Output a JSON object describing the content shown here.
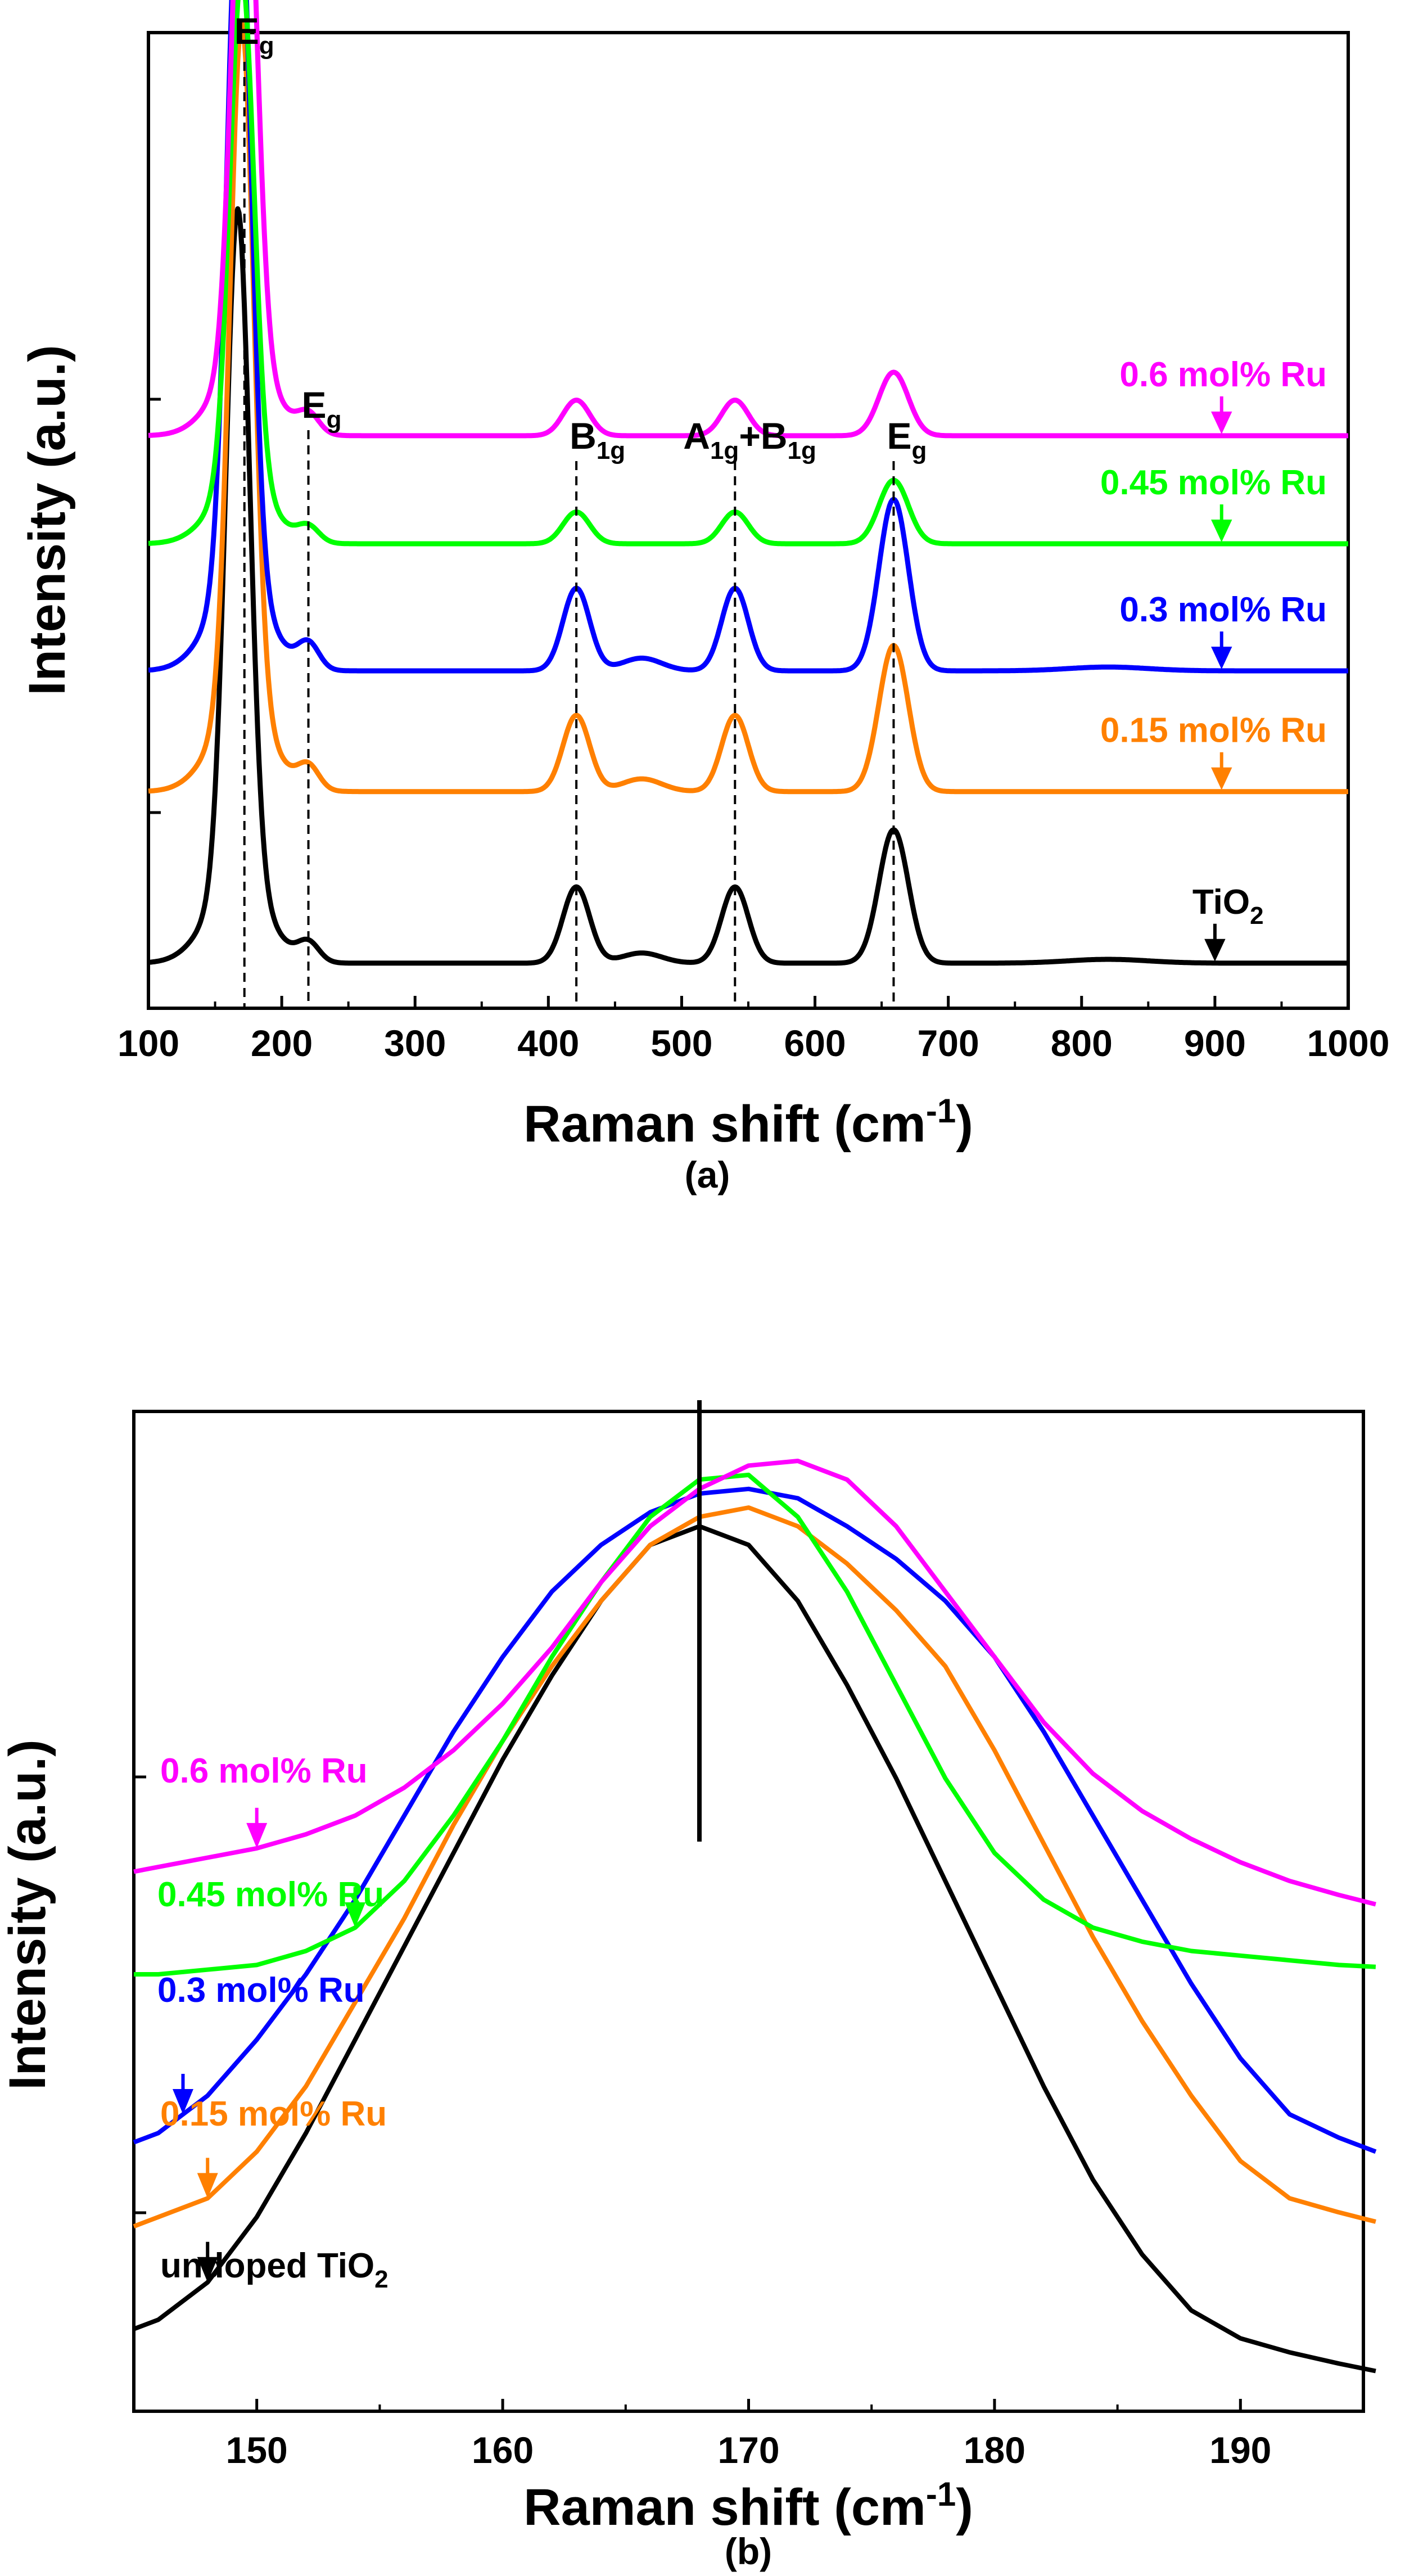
{
  "chart_data": [
    {
      "panel": "(a)",
      "type": "line",
      "xlabel_main": "Raman shift (cm",
      "xlabel_sup": "-1",
      "xlabel_close": ")",
      "ylabel": "Intensity (a.u.)",
      "xlim": [
        100,
        1000
      ],
      "x_ticks": [
        100,
        200,
        300,
        400,
        500,
        600,
        700,
        800,
        900,
        1000
      ],
      "ylim": [
        0,
        10
      ],
      "peaks": [
        {
          "label": "E",
          "sub": "g",
          "x": 172
        },
        {
          "label": "E",
          "sub": "g",
          "x": 220
        },
        {
          "label": "B",
          "sub": "1g",
          "x": 421
        },
        {
          "label": "A",
          "sub": "1g",
          "mid": "+B",
          "sub2": "1g",
          "x": 540
        },
        {
          "label": "E",
          "sub": "g",
          "x": 659
        }
      ],
      "series": [
        {
          "name": "TiO",
          "sub": "2",
          "color": "#000000",
          "baseline": 0.2,
          "offset": 0.0,
          "peaks": [
            [
              167,
              5.3,
              9
            ],
            [
              220,
              0.15,
              8
            ],
            [
              421,
              0.6,
              10
            ],
            [
              470,
              0.08,
              15
            ],
            [
              540,
              0.6,
              10
            ],
            [
              659,
              1.05,
              11
            ],
            [
              820,
              0.03,
              30
            ]
          ],
          "label_x": 900
        },
        {
          "name": "0.15 mol% Ru",
          "color": "#ff8000",
          "baseline": 1.55,
          "offset": 0.0,
          "peaks": [
            [
              170,
              5.4,
              9
            ],
            [
              220,
              0.18,
              8
            ],
            [
              421,
              0.6,
              10
            ],
            [
              470,
              0.1,
              15
            ],
            [
              540,
              0.6,
              10
            ],
            [
              659,
              1.15,
              11
            ]
          ],
          "label_x": 905
        },
        {
          "name": "0.3 mol% Ru",
          "color": "#0000ff",
          "baseline": 2.5,
          "offset": 0.0,
          "peaks": [
            [
              168,
              5.6,
              9
            ],
            [
              220,
              0.2,
              8
            ],
            [
              421,
              0.65,
              10
            ],
            [
              470,
              0.1,
              15
            ],
            [
              540,
              0.65,
              10
            ],
            [
              659,
              1.35,
              11
            ],
            [
              820,
              0.03,
              30
            ]
          ],
          "label_x": 905
        },
        {
          "name": "0.45 mol% Ru",
          "color": "#00ff00",
          "baseline": 3.5,
          "offset": 0.0,
          "peaks": [
            [
              170,
              4.0,
              9
            ],
            [
              220,
              0.12,
              8
            ],
            [
              421,
              0.25,
              10
            ],
            [
              540,
              0.25,
              10
            ],
            [
              659,
              0.5,
              11
            ]
          ],
          "label_x": 905
        },
        {
          "name": "0.6 mol% Ru",
          "color": "#ff00ff",
          "baseline": 4.35,
          "offset": 0.0,
          "peaks": [
            [
              172,
              4.6,
              9
            ],
            [
              220,
              0.15,
              8
            ],
            [
              421,
              0.28,
              10
            ],
            [
              540,
              0.28,
              10
            ],
            [
              659,
              0.5,
              11
            ]
          ],
          "label_x": 905
        }
      ],
      "caption": "(a)"
    },
    {
      "panel": "(b)",
      "type": "line",
      "xlabel_main": "Raman shift (cm",
      "xlabel_sup": "-1",
      "xlabel_close": ")",
      "ylabel": "Intensity (a.u.)",
      "xlim": [
        145,
        195
      ],
      "x_ticks": [
        150,
        160,
        170,
        180,
        190
      ],
      "ylim": [
        0,
        10
      ],
      "vline_x": 168,
      "series": [
        {
          "name": "undoped TiO",
          "sub": "2",
          "color": "#000000",
          "x": [
            145,
            146,
            148,
            150,
            152,
            154,
            156,
            158,
            160,
            162,
            164,
            166,
            168,
            170,
            172,
            174,
            176,
            178,
            180,
            182,
            184,
            186,
            188,
            190,
            192,
            194,
            195.5
          ],
          "y": [
            0.7,
            0.8,
            1.2,
            1.9,
            2.8,
            3.8,
            4.8,
            5.8,
            6.8,
            7.7,
            8.5,
            9.1,
            9.3,
            9.1,
            8.5,
            7.6,
            6.6,
            5.5,
            4.4,
            3.3,
            2.3,
            1.5,
            0.9,
            0.6,
            0.45,
            0.33,
            0.25
          ],
          "arrow_x": 148
        },
        {
          "name": "0.15 mol% Ru",
          "color": "#ff8000",
          "x": [
            145,
            146,
            148,
            150,
            152,
            154,
            156,
            158,
            160,
            162,
            164,
            166,
            168,
            170,
            172,
            174,
            176,
            178,
            180,
            182,
            184,
            186,
            188,
            190,
            192,
            194,
            195.5
          ],
          "y": [
            1.8,
            1.9,
            2.1,
            2.6,
            3.3,
            4.2,
            5.1,
            6.1,
            7.0,
            7.8,
            8.5,
            9.1,
            9.4,
            9.5,
            9.3,
            8.9,
            8.4,
            7.8,
            6.9,
            5.9,
            4.9,
            4.0,
            3.2,
            2.5,
            2.1,
            1.95,
            1.85
          ],
          "arrow_x": 148
        },
        {
          "name": "0.3 mol% Ru",
          "color": "#0000ff",
          "x": [
            145,
            146,
            148,
            150,
            152,
            154,
            156,
            158,
            160,
            162,
            164,
            166,
            168,
            170,
            172,
            174,
            176,
            178,
            180,
            182,
            184,
            186,
            188,
            190,
            192,
            194,
            195.5
          ],
          "y": [
            2.7,
            2.8,
            3.2,
            3.8,
            4.5,
            5.3,
            6.2,
            7.1,
            7.9,
            8.6,
            9.1,
            9.45,
            9.65,
            9.7,
            9.6,
            9.3,
            8.95,
            8.5,
            7.9,
            7.1,
            6.2,
            5.3,
            4.4,
            3.6,
            3.0,
            2.75,
            2.6
          ],
          "arrow_x": 147
        },
        {
          "name": "0.45 mol% Ru",
          "color": "#00ff00",
          "x": [
            145,
            146,
            148,
            150,
            152,
            154,
            156,
            158,
            160,
            162,
            164,
            166,
            168,
            170,
            172,
            174,
            176,
            178,
            180,
            182,
            184,
            186,
            188,
            190,
            192,
            194,
            195.5
          ],
          "y": [
            4.5,
            4.5,
            4.55,
            4.6,
            4.75,
            5.0,
            5.5,
            6.2,
            7.0,
            7.9,
            8.7,
            9.4,
            9.8,
            9.85,
            9.4,
            8.6,
            7.6,
            6.6,
            5.8,
            5.3,
            5.0,
            4.85,
            4.75,
            4.7,
            4.65,
            4.6,
            4.58
          ],
          "arrow_x": 154
        },
        {
          "name": "0.6 mol% Ru",
          "color": "#ff00ff",
          "x": [
            145,
            146,
            148,
            150,
            152,
            154,
            156,
            158,
            160,
            162,
            164,
            166,
            168,
            170,
            172,
            174,
            176,
            178,
            180,
            182,
            184,
            186,
            188,
            190,
            192,
            194,
            195.5
          ],
          "y": [
            5.6,
            5.65,
            5.75,
            5.85,
            6.0,
            6.2,
            6.5,
            6.9,
            7.4,
            8.0,
            8.7,
            9.3,
            9.7,
            9.95,
            10.0,
            9.8,
            9.3,
            8.6,
            7.9,
            7.2,
            6.65,
            6.25,
            5.95,
            5.7,
            5.5,
            5.35,
            5.25
          ],
          "arrow_x": 150
        }
      ],
      "caption": "(b)"
    }
  ]
}
